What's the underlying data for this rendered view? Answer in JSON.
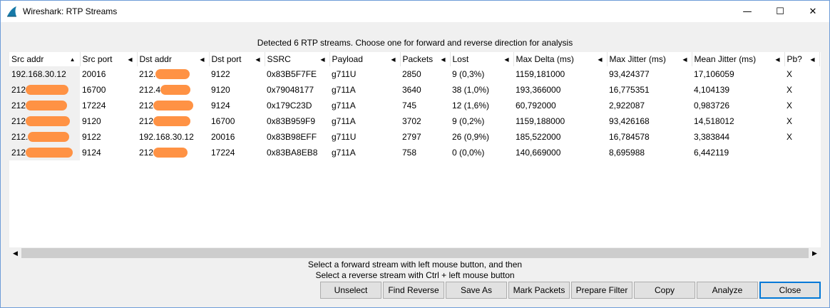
{
  "window": {
    "title": "Wireshark: RTP Streams",
    "minimize_glyph": "—",
    "maximize_glyph": "☐",
    "close_glyph": "✕"
  },
  "heading": "Detected 6 RTP streams. Choose one for forward and reverse direction for analysis",
  "columns": [
    "Src addr",
    "Src port",
    "Dst addr",
    "Dst port",
    "SSRC",
    "Payload",
    "Packets",
    "Lost",
    "Max Delta (ms)",
    "Max Jitter (ms)",
    "Mean Jitter (ms)",
    "Pb?"
  ],
  "rows": [
    {
      "src_addr": "192.168.30.12",
      "src_port": "20016",
      "dst_addr": "212.",
      "dst_port": "9122",
      "ssrc": "0x83B5F7FE",
      "payload": "g711U",
      "packets": "2850",
      "lost": "9 (0,3%)",
      "max_delta": "1159,181000",
      "max_jitter": "93,424377",
      "mean_jitter": "17,106059",
      "pb": "X"
    },
    {
      "src_addr": "212",
      "src_port": "16700",
      "dst_addr": "212.4",
      "dst_port": "9120",
      "ssrc": "0x79048177",
      "payload": "g711A",
      "packets": "3640",
      "lost": "38 (1,0%)",
      "max_delta": "193,366000",
      "max_jitter": "16,775351",
      "mean_jitter": "4,104139",
      "pb": "X"
    },
    {
      "src_addr": "212",
      "src_port": "17224",
      "dst_addr": "212",
      "dst_port": "9124",
      "ssrc": "0x179C23D",
      "payload": "g711A",
      "packets": "745",
      "lost": "12 (1,6%)",
      "max_delta": "60,792000",
      "max_jitter": "2,922087",
      "mean_jitter": "0,983726",
      "pb": "X"
    },
    {
      "src_addr": "212",
      "src_port": "9120",
      "dst_addr": "212",
      "dst_port": "16700",
      "ssrc": "0x83B959F9",
      "payload": "g711A",
      "packets": "3702",
      "lost": "9 (0,2%)",
      "max_delta": "1159,188000",
      "max_jitter": "93,426168",
      "mean_jitter": "14,518012",
      "pb": "X"
    },
    {
      "src_addr": "212.",
      "src_port": "9122",
      "dst_addr": "192.168.30.12",
      "dst_port": "20016",
      "ssrc": "0x83B98EFF",
      "payload": "g711U",
      "packets": "2797",
      "lost": "26 (0,9%)",
      "max_delta": "185,522000",
      "max_jitter": "16,784578",
      "mean_jitter": "3,383844",
      "pb": "X"
    },
    {
      "src_addr": "212",
      "src_port": "9124",
      "dst_addr": "212",
      "dst_port": "17224",
      "ssrc": "0x83BA8EB8",
      "payload": "g711A",
      "packets": "758",
      "lost": "0 (0,0%)",
      "max_delta": "140,669000",
      "max_jitter": "8,695988",
      "mean_jitter": "6,442119",
      "pb": ""
    }
  ],
  "sort_glyphs": {
    "ascending": "▲",
    "column": "◀"
  },
  "scroll_glyphs": {
    "left": "◀",
    "right": "▶"
  },
  "instructions": {
    "line1": "Select a forward stream with left mouse button, and then",
    "line2": "Select a reverse stream with Ctrl + left mouse button"
  },
  "buttons": {
    "unselect": "Unselect",
    "find_reverse": "Find Reverse",
    "save_as": "Save As",
    "mark_packets": "Mark Packets",
    "prepare_filter": "Prepare Filter",
    "copy": "Copy",
    "analyze": "Analyze",
    "close": "Close"
  },
  "colors": {
    "redaction": "#ff8c3a",
    "focus_border": "#0078d7"
  }
}
